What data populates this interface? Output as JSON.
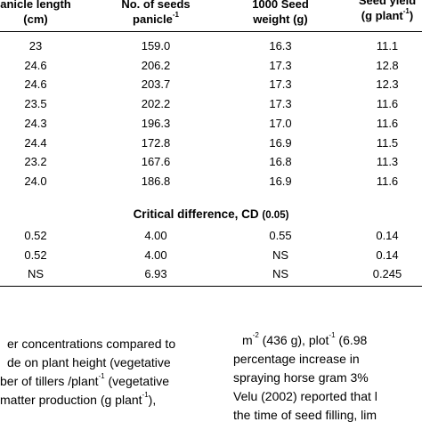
{
  "table": {
    "headers": [
      {
        "line1": "anicle length",
        "line2": "(cm)"
      },
      {
        "line1": "No. of seeds",
        "line2": "panicle",
        "line2_sup": "-1"
      },
      {
        "line1": "1000 Seed",
        "line2": "weight (g)"
      },
      {
        "line1": "Seed yield",
        "line2": "(g plant",
        "line2_sup": "-1",
        "line2_tail": ")"
      }
    ],
    "rows": [
      [
        "23",
        "159.0",
        "16.3",
        "11.1"
      ],
      [
        "24.6",
        "206.2",
        "17.3",
        "12.8"
      ],
      [
        "24.6",
        "203.7",
        "17.3",
        "12.3"
      ],
      [
        "23.5",
        "202.2",
        "17.3",
        "11.6"
      ],
      [
        "24.3",
        "196.3",
        "17.0",
        "11.6"
      ],
      [
        "24.4",
        "172.8",
        "16.9",
        "11.5"
      ],
      [
        "23.2",
        "167.6",
        "16.8",
        "11.3"
      ],
      [
        "24.0",
        "186.8",
        "16.9",
        "11.6"
      ]
    ],
    "cd_title": "Critical difference, CD",
    "cd_suffix": "(0.05)",
    "cd_rows": [
      [
        "0.52",
        "4.00",
        "0.55",
        "0.14"
      ],
      [
        "0.52",
        "4.00",
        "NS",
        "0.14"
      ],
      [
        "NS",
        "6.93",
        "NS",
        "0.245"
      ]
    ]
  },
  "text_left": {
    "line1": "er concentrations compared to",
    "line2a": "de  on  plant  height  (vegetative",
    "line3a": "ber of tillers /plant",
    "line3_sup": "-1",
    "line3b": " (vegetative",
    "line4a": "matter  production  (g  plant",
    "line4_sup": "-1",
    "line4b": "),"
  },
  "text_right": {
    "line1_pre": "m",
    "line1_sup": "-2",
    "line1_post": " (436 g), plot",
    "line1_sup2": "-1",
    "line1_tail": " (6.98",
    "line2": "percentage increase in",
    "line3": "spraying horse gram 3%",
    "line4": "Velu (2002) reported that l",
    "line5": "the time of seed filling, lim"
  }
}
